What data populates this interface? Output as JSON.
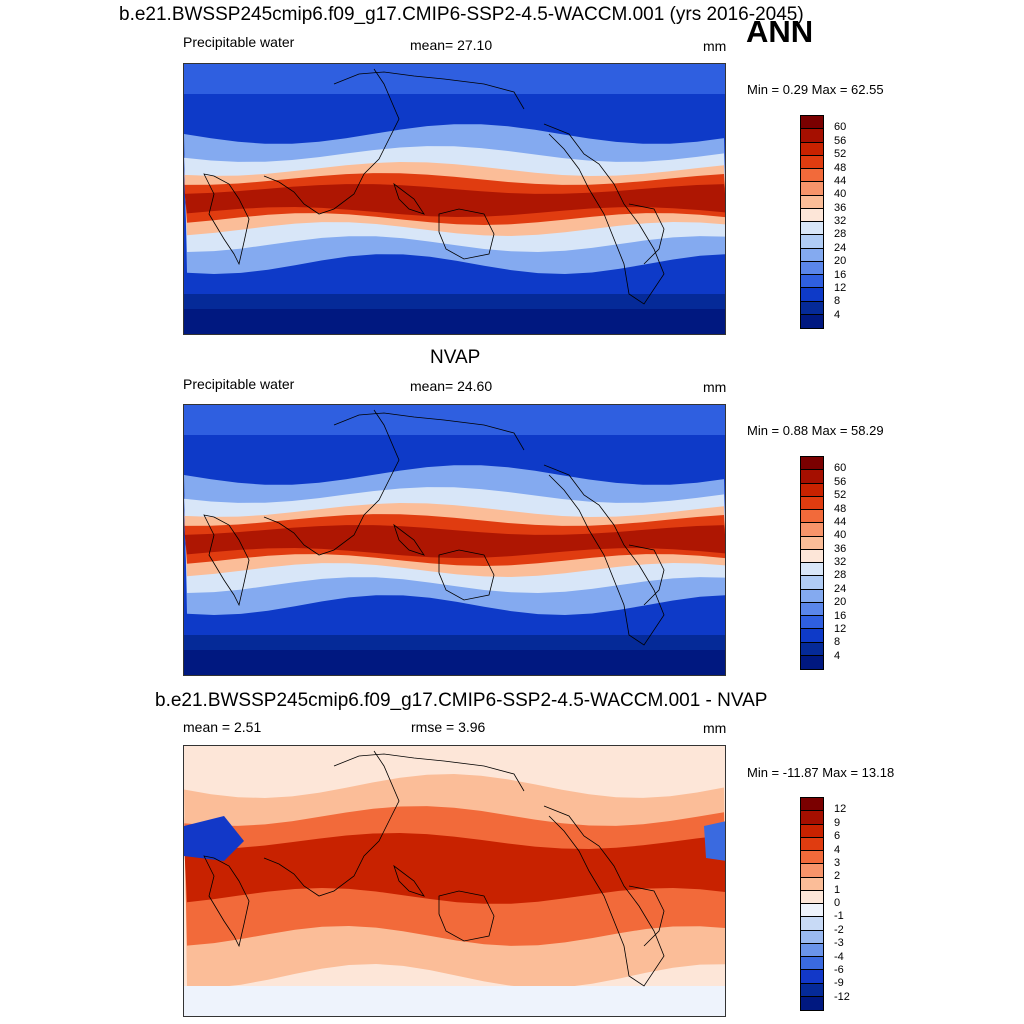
{
  "season": "ANN",
  "panels": [
    {
      "title": "b.e21.BWSSP245cmip6.f09_g17.CMIP6-SSP2-4.5-WACCM.001 (yrs 2016-2045)",
      "left_label": "Precipitable water",
      "center_label": "mean=  27.10",
      "units": "mm",
      "minmax": "Min =   0.29 Max =  62.55",
      "map_kind": "abs",
      "colorbar": {
        "labels": [
          "60",
          "56",
          "52",
          "48",
          "44",
          "40",
          "36",
          "32",
          "28",
          "24",
          "20",
          "16",
          "12",
          "8",
          "4"
        ],
        "colors": [
          "#7a0000",
          "#a50f00",
          "#c82200",
          "#e03c10",
          "#f26a3a",
          "#f7946a",
          "#fbbd98",
          "#fde6d8",
          "#d8e6f8",
          "#b0ccf5",
          "#84aaf0",
          "#5a86ea",
          "#2f5fe0",
          "#0e3ac8",
          "#052a98",
          "#001880"
        ]
      }
    },
    {
      "title": "NVAP",
      "left_label": "Precipitable water",
      "center_label": "mean=  24.60",
      "units": "mm",
      "minmax": "Min =   0.88 Max =  58.29",
      "map_kind": "abs",
      "colorbar": {
        "labels": [
          "60",
          "56",
          "52",
          "48",
          "44",
          "40",
          "36",
          "32",
          "28",
          "24",
          "20",
          "16",
          "12",
          "8",
          "4"
        ],
        "colors": [
          "#7a0000",
          "#a50f00",
          "#c82200",
          "#e03c10",
          "#f26a3a",
          "#f7946a",
          "#fbbd98",
          "#fde6d8",
          "#d8e6f8",
          "#b0ccf5",
          "#84aaf0",
          "#5a86ea",
          "#2f5fe0",
          "#0e3ac8",
          "#052a98",
          "#001880"
        ]
      }
    },
    {
      "title": "b.e21.BWSSP245cmip6.f09_g17.CMIP6-SSP2-4.5-WACCM.001 - NVAP",
      "left_label": "mean =   2.51",
      "center_label": "rmse =   3.96",
      "units": "mm",
      "minmax": "Min = -11.87 Max =  13.18",
      "map_kind": "diff",
      "colorbar": {
        "labels": [
          "12",
          "9",
          "6",
          "4",
          "3",
          "2",
          "1",
          "0",
          "-1",
          "-2",
          "-3",
          "-4",
          "-6",
          "-9",
          "-12"
        ],
        "colors": [
          "#7a0000",
          "#a50f00",
          "#c82200",
          "#e03c10",
          "#f26a3a",
          "#f7946a",
          "#fbbd98",
          "#fde6d8",
          "#eef3fc",
          "#c8daf6",
          "#9ab9f0",
          "#6a94ea",
          "#3a6ae0",
          "#1238c8",
          "#052a98",
          "#001880"
        ]
      }
    }
  ]
}
